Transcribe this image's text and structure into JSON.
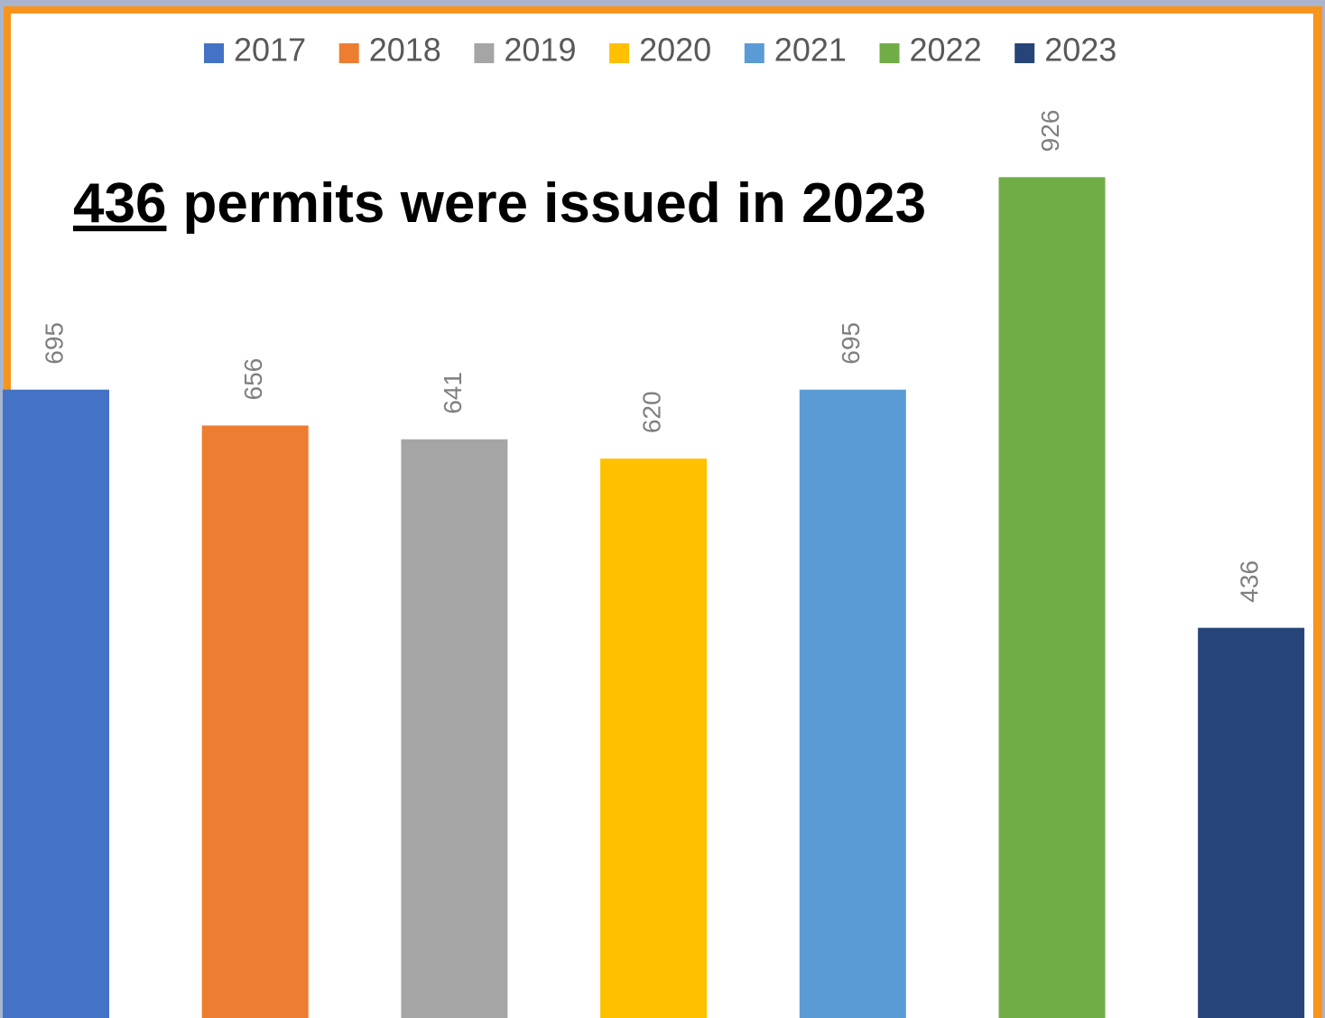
{
  "chart_data": {
    "type": "bar",
    "annotation": {
      "highlight": "436",
      "text": "permits were issued in 2023"
    },
    "categories": [
      null
    ],
    "series": [
      {
        "name": "2017",
        "color": "#4472c4",
        "values": [
          695
        ]
      },
      {
        "name": "2018",
        "color": "#ed7d31",
        "values": [
          656
        ]
      },
      {
        "name": "2019",
        "color": "#a5a5a5",
        "values": [
          641
        ]
      },
      {
        "name": "2020",
        "color": "#ffc000",
        "values": [
          620
        ]
      },
      {
        "name": "2021",
        "color": "#5b9bd5",
        "values": [
          695
        ]
      },
      {
        "name": "2022",
        "color": "#70ad47",
        "values": [
          926
        ]
      },
      {
        "name": "2023",
        "color": "#264478",
        "values": [
          436
        ]
      }
    ],
    "ylim": [
      0,
      1100
    ],
    "legend": "top"
  }
}
